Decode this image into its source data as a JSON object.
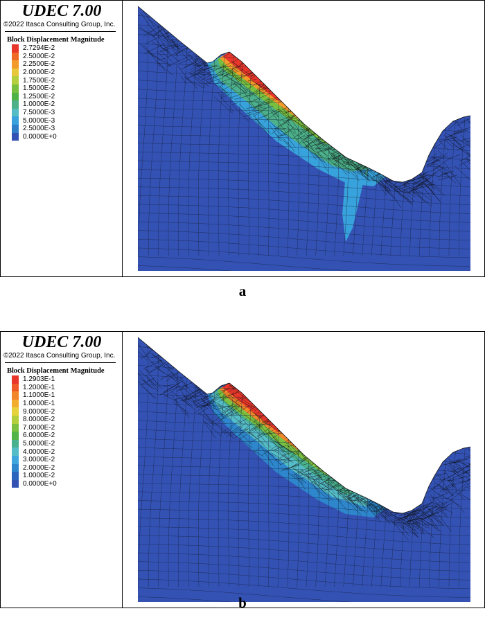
{
  "colors": {
    "bg_block": "#3352b4",
    "mesh_line": "#17223f",
    "crack_line": "#0c0c0c"
  },
  "panels": [
    {
      "caption": "a",
      "software_title": "UDEC 7.00",
      "copyright": "©2022 Itasca Consulting Group, Inc.",
      "legend_title": "Block Displacement Magnitude",
      "legend": [
        {
          "label": "2.7294E-2",
          "color": "#e8372a"
        },
        {
          "label": "2.5000E-2",
          "color": "#ef6a26"
        },
        {
          "label": "2.2500E-2",
          "color": "#f29a2a"
        },
        {
          "label": "2.0000E-2",
          "color": "#e8c83a"
        },
        {
          "label": "1.7500E-2",
          "color": "#b3cf3d"
        },
        {
          "label": "1.5000E-2",
          "color": "#78bf3f"
        },
        {
          "label": "1.2500E-2",
          "color": "#4fb246"
        },
        {
          "label": "1.0000E-2",
          "color": "#4cb18a"
        },
        {
          "label": "7.5000E-3",
          "color": "#54bcc5"
        },
        {
          "label": "5.0000E-3",
          "color": "#38a2dc"
        },
        {
          "label": "2.5000E-3",
          "color": "#2f7fc8"
        },
        {
          "label": "0.0000E+0",
          "color": "#3352b4"
        }
      ]
    },
    {
      "caption": "b",
      "software_title": "UDEC 7.00",
      "copyright": "©2022 Itasca Consulting Group, Inc.",
      "legend_title": "Block Displacement Magnitude",
      "legend": [
        {
          "label": "1.2903E-1",
          "color": "#e8372a"
        },
        {
          "label": "1.2000E-1",
          "color": "#ef5a26"
        },
        {
          "label": "1.1000E-1",
          "color": "#f2862a"
        },
        {
          "label": "1.0000E-1",
          "color": "#f3ad2e"
        },
        {
          "label": "9.0000E-2",
          "color": "#e6d23a"
        },
        {
          "label": "8.0000E-2",
          "color": "#b3cf3d"
        },
        {
          "label": "7.0000E-2",
          "color": "#7cc041"
        },
        {
          "label": "6.0000E-2",
          "color": "#52b447"
        },
        {
          "label": "5.0000E-2",
          "color": "#49b18e"
        },
        {
          "label": "4.0000E-2",
          "color": "#55bdc8"
        },
        {
          "label": "3.0000E-2",
          "color": "#3ea6dd"
        },
        {
          "label": "2.0000E-2",
          "color": "#2e86cc"
        },
        {
          "label": "1.0000E-2",
          "color": "#2d66bd"
        },
        {
          "label": "0.0000E+0",
          "color": "#3352b4"
        }
      ]
    }
  ]
}
